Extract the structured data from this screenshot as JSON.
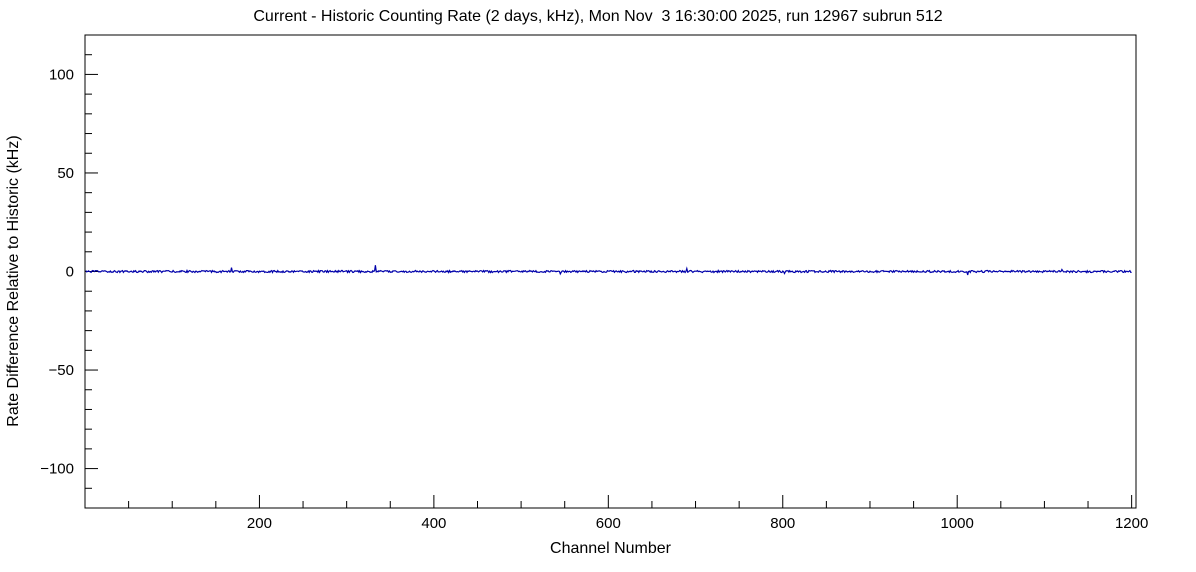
{
  "chart_data": {
    "type": "line",
    "title": "Current - Historic Counting Rate (2 days, kHz), Mon Nov  3 16:30:00 2025, run 12967 subrun 512",
    "xlabel": "Channel Number",
    "ylabel": "Rate Difference Relative to Historic (kHz)",
    "xlim": [
      0,
      1205
    ],
    "ylim": [
      -120,
      120
    ],
    "x_major_ticks": [
      200,
      400,
      600,
      800,
      1000,
      1200
    ],
    "x_minor_step": 50,
    "y_major_ticks": [
      -100,
      -50,
      0,
      50,
      100
    ],
    "y_minor_step": 10,
    "grid": false,
    "legend": "none",
    "line_color": "#0000aa",
    "frame_color": "#000000",
    "baseline": 0,
    "noise_amplitude": 0.5,
    "n_channels": 1200,
    "spikes": [
      {
        "x": 168,
        "y": 2.0
      },
      {
        "x": 333,
        "y": 3.2
      },
      {
        "x": 545,
        "y": -1.2
      },
      {
        "x": 690,
        "y": 1.5
      },
      {
        "x": 802,
        "y": -1.0
      },
      {
        "x": 1012,
        "y": -1.8
      },
      {
        "x": 1120,
        "y": 1.0
      }
    ]
  }
}
